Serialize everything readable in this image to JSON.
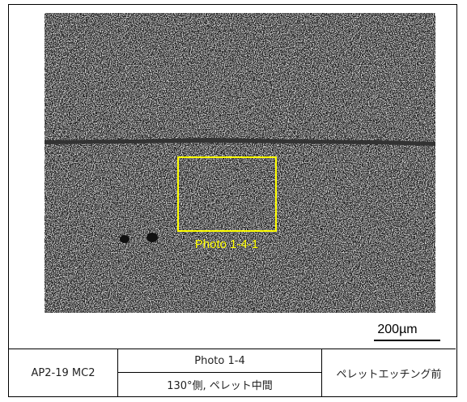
{
  "micrograph": {
    "box_label": "Photo 1-4-1",
    "scale_bar": "200µm"
  },
  "table": {
    "sample": "AP2-19 MC2",
    "photo": "Photo 1-4",
    "location": "130°側, ペレット中間",
    "condition": "ペレットエッチング前"
  }
}
